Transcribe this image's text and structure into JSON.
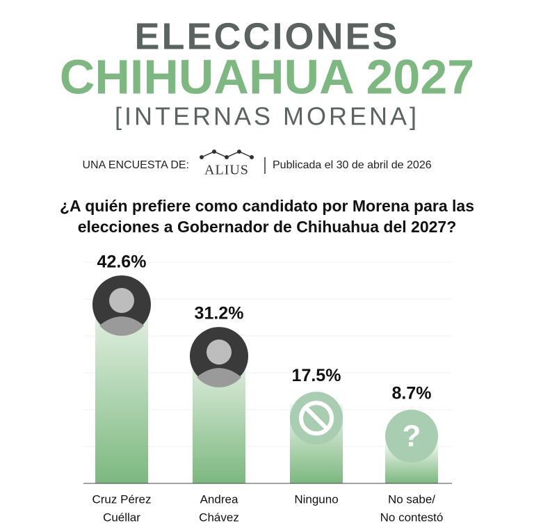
{
  "chart_data": {
    "type": "bar",
    "title": [
      "ELECCIONES",
      "CHIHUAHUA 2027"
    ],
    "subtitle": "[INTERNAS MORENA]",
    "source_prefix": "UNA ENCUESTA DE:",
    "source": "ALIUS",
    "published": "Publicada el 30 de abril de 2026",
    "question": [
      "¿A quién prefiere como candidato por Morena para las",
      "elecciones a Gobernador de Chihuahua del 2027?"
    ],
    "categories": [
      [
        "Cruz Pérez",
        "Cuéllar"
      ],
      [
        "Andrea",
        "Chávez"
      ],
      [
        "Ninguno"
      ],
      [
        "No sabe/",
        "No contestó"
      ]
    ],
    "values": [
      42.6,
      31.2,
      17.5,
      8.7
    ],
    "value_labels": [
      "42.6%",
      "31.2%",
      "17.5%",
      "8.7%"
    ],
    "color": "#7cb87f",
    "grid": true
  }
}
